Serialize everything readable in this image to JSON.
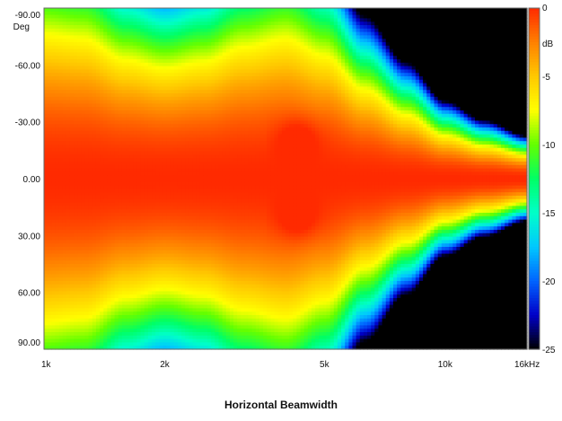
{
  "chart_data": {
    "type": "heatmap",
    "title": "Horizontal Beamwidth",
    "x_axis": {
      "scale": "log",
      "range_hz": [
        1000,
        16000
      ],
      "tick_labels": [
        "1k",
        "2k",
        "5k",
        "10k",
        "16k"
      ],
      "tick_values": [
        1000,
        2000,
        5000,
        10000,
        16000
      ],
      "unit_label": "Hz"
    },
    "y_axis": {
      "range_deg": [
        -90,
        90
      ],
      "tick_labels": [
        "-90.00",
        "-60.00",
        "-30.00",
        "0.00",
        "30.00",
        "60.00",
        "90.00"
      ],
      "tick_values": [
        -90,
        -60,
        -30,
        0,
        30,
        60,
        90
      ],
      "unit_label": "Deg"
    },
    "colorbar": {
      "unit_label": "dB",
      "range_db": [
        -25,
        0
      ],
      "tick_labels": [
        "0",
        "-5",
        "-10",
        "-15",
        "-20",
        "-25"
      ],
      "tick_values": [
        0,
        -5,
        -10,
        -15,
        -20,
        -25
      ],
      "colors": [
        "#000000",
        "#0000c8",
        "#0064ff",
        "#00c8ff",
        "#00ffc8",
        "#00ff64",
        "#64ff00",
        "#ffff00",
        "#ffc800",
        "#ff8000",
        "#ff2a00"
      ]
    },
    "beamwidth_profile": {
      "frequency_hz": [
        1000,
        1250,
        1600,
        2000,
        2500,
        3150,
        4000,
        5000,
        6300,
        8000,
        10000,
        12500,
        16000
      ],
      "minus6db_half_angle_deg": [
        68,
        66,
        56,
        52,
        55,
        62,
        66,
        58,
        42,
        30,
        20,
        15,
        11
      ]
    },
    "grid": false,
    "legend": "right"
  }
}
